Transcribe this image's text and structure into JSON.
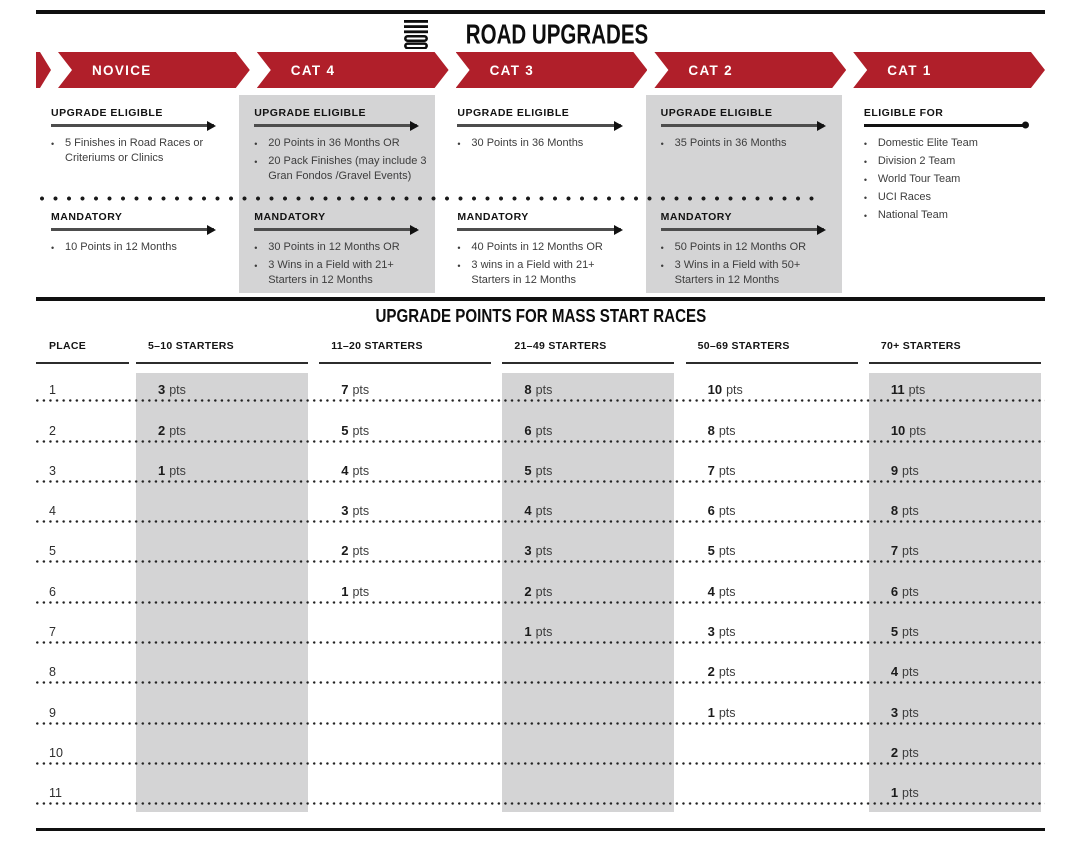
{
  "masthead": {
    "mark": "stacked-100-mark",
    "title": "ROAD UPGRADES"
  },
  "pipeline": {
    "categories": [
      {
        "id": "novice",
        "label": "NOVICE",
        "shaded": false,
        "sections": [
          {
            "heading": "UPGRADE ELIGIBLE",
            "terminator": "arrow",
            "bullets": [
              "5 Finishes in Road Races or Criteriums or Clinics"
            ]
          },
          {
            "heading": "MANDATORY",
            "terminator": "arrow",
            "bullets": [
              "10 Points in 12 Months"
            ]
          }
        ]
      },
      {
        "id": "cat-4",
        "label": "CAT 4",
        "shaded": true,
        "sections": [
          {
            "heading": "UPGRADE ELIGIBLE",
            "terminator": "arrow",
            "bullets": [
              "20 Points in 36 Months OR",
              "20 Pack Finishes (may include 3 Gran Fondos /Gravel Events)"
            ]
          },
          {
            "heading": "MANDATORY",
            "terminator": "arrow",
            "bullets": [
              "30 Points in 12 Months OR",
              "3 Wins in a Field with 21+ Starters in 12 Months"
            ]
          }
        ]
      },
      {
        "id": "cat-3",
        "label": "CAT 3",
        "shaded": false,
        "sections": [
          {
            "heading": "UPGRADE ELIGIBLE",
            "terminator": "arrow",
            "bullets": [
              "30 Points in 36 Months"
            ]
          },
          {
            "heading": "MANDATORY",
            "terminator": "arrow",
            "bullets": [
              "40 Points in 12 Months OR",
              "3 wins in a Field with 21+ Starters in 12 Months"
            ]
          }
        ]
      },
      {
        "id": "cat-2",
        "label": "CAT 2",
        "shaded": true,
        "sections": [
          {
            "heading": "UPGRADE ELIGIBLE",
            "terminator": "arrow",
            "bullets": [
              "35 Points in 36 Months"
            ]
          },
          {
            "heading": "MANDATORY",
            "terminator": "arrow",
            "bullets": [
              "50 Points in 12 Months OR",
              "3 Wins in a Field with 50+ Starters in 12 Months"
            ]
          }
        ]
      },
      {
        "id": "cat-1",
        "label": "CAT 1",
        "shaded": false,
        "sections": [
          {
            "heading": "ELIGIBLE FOR",
            "terminator": "dot",
            "bullets": [
              "Domestic Elite Team",
              "Division 2 Team",
              "World Tour Team",
              "UCI Races",
              "National Team"
            ]
          }
        ]
      }
    ]
  },
  "points_table": {
    "title": "UPGRADE POINTS FOR MASS START RACES",
    "place_header": "PLACE",
    "starter_headers": [
      "5–10 STARTERS",
      "11–20 STARTERS",
      "21–49 STARTERS",
      "50–69 STARTERS",
      "70+ STARTERS"
    ],
    "shaded_column_indexes": [
      0,
      2,
      4
    ],
    "unit": "pts",
    "rows": [
      {
        "place": "1",
        "values": [
          3,
          7,
          8,
          10,
          11
        ]
      },
      {
        "place": "2",
        "values": [
          2,
          5,
          6,
          8,
          10
        ]
      },
      {
        "place": "3",
        "values": [
          1,
          4,
          5,
          7,
          9
        ]
      },
      {
        "place": "4",
        "values": [
          null,
          3,
          4,
          6,
          8
        ]
      },
      {
        "place": "5",
        "values": [
          null,
          2,
          3,
          5,
          7
        ]
      },
      {
        "place": "6",
        "values": [
          null,
          1,
          2,
          4,
          6
        ]
      },
      {
        "place": "7",
        "values": [
          null,
          null,
          1,
          3,
          5
        ]
      },
      {
        "place": "8",
        "values": [
          null,
          null,
          null,
          2,
          4
        ]
      },
      {
        "place": "9",
        "values": [
          null,
          null,
          null,
          1,
          3
        ]
      },
      {
        "place": "10",
        "values": [
          null,
          null,
          null,
          null,
          2
        ]
      },
      {
        "place": "11",
        "values": [
          null,
          null,
          null,
          null,
          1
        ]
      }
    ]
  },
  "colors": {
    "brand_red": "#B01F2A",
    "band_gray": "#D4D4D5",
    "rule_black": "#101010"
  }
}
